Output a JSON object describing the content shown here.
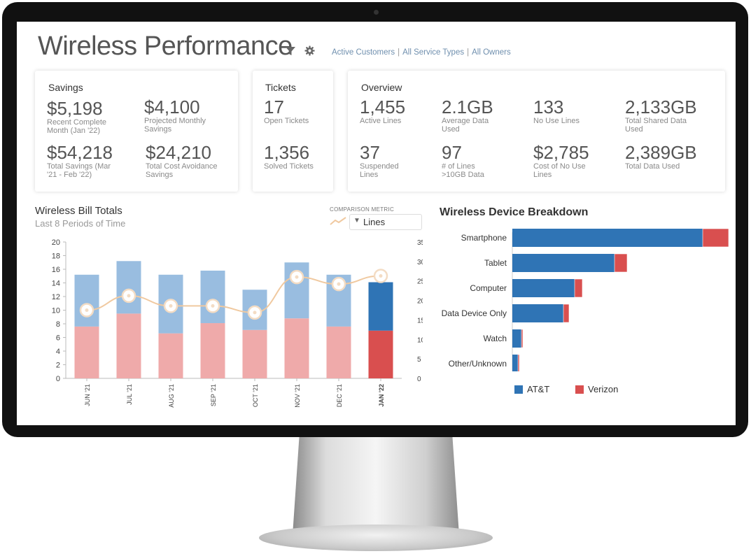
{
  "header": {
    "title": "Wireless Performance",
    "filters": [
      "Active Customers",
      "All Service Types",
      "All Owners"
    ]
  },
  "savings": {
    "title": "Savings",
    "stats": [
      {
        "value": "$5,198",
        "label": "Recent Complete Month (Jan '22)"
      },
      {
        "value": "$4,100",
        "label": "Projected Monthly Savings"
      },
      {
        "value": "$54,218",
        "label": "Total Savings (Mar '21 - Feb '22)"
      },
      {
        "value": "$24,210",
        "label": "Total Cost Avoidance Savings"
      }
    ]
  },
  "tickets": {
    "title": "Tickets",
    "stats": [
      {
        "value": "17",
        "label": "Open Tickets"
      },
      {
        "value": "1,356",
        "label": "Solved Tickets"
      }
    ]
  },
  "overview": {
    "title": "Overview",
    "stats": [
      {
        "value": "1,455",
        "label": "Active Lines"
      },
      {
        "value": "2.1GB",
        "label": "Average Data Used"
      },
      {
        "value": "133",
        "label": "No Use Lines"
      },
      {
        "value": "2,133GB",
        "label": "Total Shared Data Used"
      },
      {
        "value": "37",
        "label": "Suspended Lines"
      },
      {
        "value": "97",
        "label": "# of Lines >10GB Data"
      },
      {
        "value": "$2,785",
        "label": "Cost of No Use Lines"
      },
      {
        "value": "2,389GB",
        "label": "Total Data Used"
      }
    ]
  },
  "bill": {
    "title": "Wireless Bill Totals",
    "subtitle": "Last 8 Periods of Time",
    "comparison_label": "COMPARISON METRIC",
    "comparison_value": "Lines"
  },
  "device": {
    "title": "Wireless Device Breakdown",
    "legend": [
      "AT&T",
      "Verizon"
    ]
  },
  "colors": {
    "att": "#2f74b5",
    "verizon": "#d94f4f",
    "att_light": "#99bde0",
    "verizon_light": "#efaaaa",
    "line": "#f0c9a0"
  },
  "chart_data": [
    {
      "type": "bar",
      "stacked": true,
      "categories": [
        "JUN '21",
        "JUL '21",
        "AUG '21",
        "SEP '21",
        "OCT '21",
        "NOV '21",
        "DEC '21",
        "JAN '22"
      ],
      "series": [
        {
          "values": [
            7.6,
            9.5,
            6.6,
            8.1,
            7.1,
            8.8,
            7.6,
            7.0
          ]
        },
        {
          "values": [
            7.6,
            7.7,
            8.6,
            7.7,
            5.9,
            8.2,
            7.6,
            7.1
          ]
        }
      ],
      "ylim": [
        0,
        20
      ],
      "yticks": [
        0,
        2,
        4,
        6,
        8,
        10,
        12,
        14,
        16,
        18,
        20
      ],
      "highlight_index": 7,
      "overlay_line": {
        "values": [
          17.5,
          21.2,
          18.6,
          18.6,
          16.9,
          26.0,
          24.2,
          26.3
        ],
        "ylim": [
          0,
          35
        ],
        "yticks": [
          0,
          5,
          10,
          15,
          20,
          25,
          30,
          35
        ]
      }
    },
    {
      "type": "bar",
      "orientation": "horizontal",
      "stacked": true,
      "categories": [
        "Smartphone",
        "Tablet",
        "Computer",
        "Data Device Only",
        "Watch",
        "Other/Unknown"
      ],
      "series": [
        {
          "name": "AT&T",
          "values": [
            272,
            146,
            89,
            73,
            13,
            8
          ]
        },
        {
          "name": "Verizon",
          "values": [
            37,
            18,
            11,
            8,
            2,
            2
          ]
        }
      ],
      "xlim": [
        0,
        310
      ]
    }
  ]
}
